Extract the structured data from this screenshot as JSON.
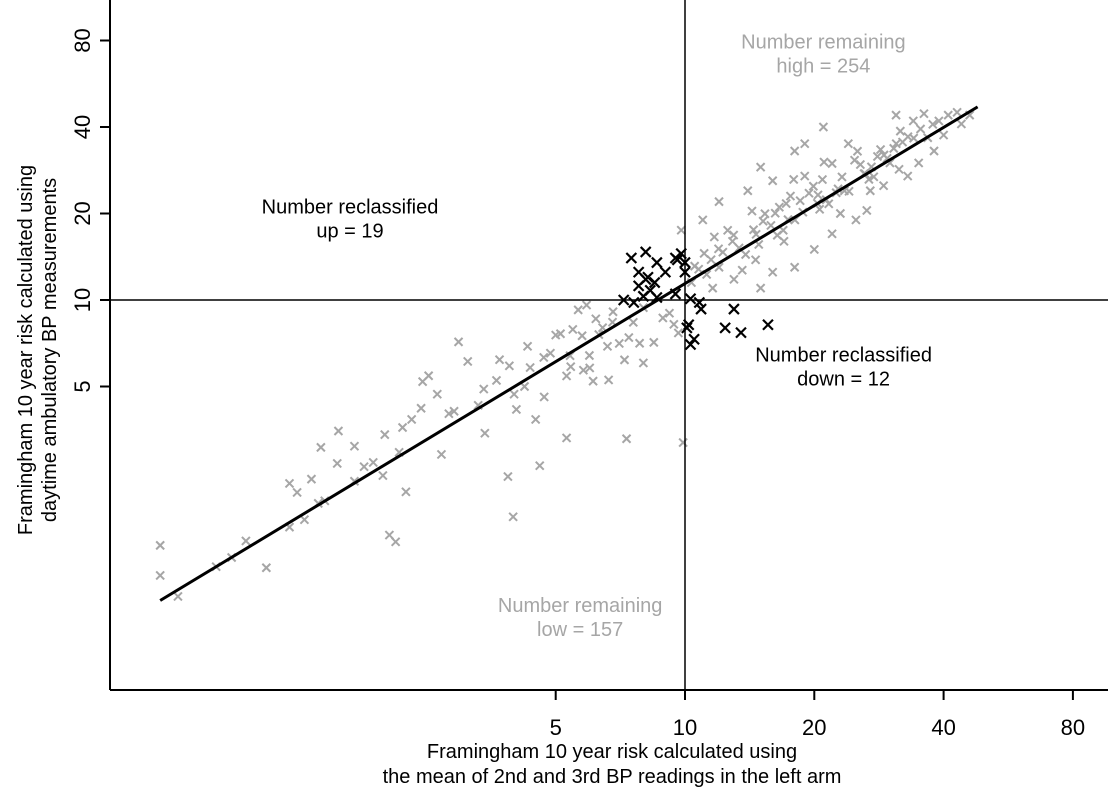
{
  "chart_data": {
    "type": "scatter",
    "scale": "log",
    "xlabel": [
      "Framingham 10 year risk calculated using",
      "the mean of 2nd and 3rd BP readings in the left arm"
    ],
    "ylabel": [
      "Framingham 10 year risk calculated using",
      "daytime ambulatory BP measurements"
    ],
    "x_ticks": [
      5,
      10,
      20,
      40,
      80
    ],
    "y_ticks": [
      5,
      10,
      20,
      40,
      80
    ],
    "threshold": 10,
    "trend_line": [
      [
        0.6,
        0.9
      ],
      [
        48,
        47
      ]
    ],
    "annotations": [
      {
        "lines": [
          "Number remaining",
          "high = 254"
        ],
        "color": "#a6a6a6",
        "x": 21,
        "y": 75
      },
      {
        "lines": [
          "Number reclassified",
          "up = 19"
        ],
        "color": "#000000",
        "x": 1.66,
        "y": 20
      },
      {
        "lines": [
          "Number reclassified",
          "down = 12"
        ],
        "color": "#000000",
        "x": 23.4,
        "y": 6.1
      },
      {
        "lines": [
          "Number remaining",
          "low = 157"
        ],
        "color": "#a6a6a6",
        "x": 5.7,
        "y": 0.82
      }
    ],
    "colors": {
      "remaining": "#a6a6a6",
      "reclassified": "#000000",
      "line": "#000000"
    },
    "reclassified_points": [
      [
        7.5,
        14
      ],
      [
        8.1,
        14.7
      ],
      [
        8.6,
        13.5
      ],
      [
        9.0,
        12.5
      ],
      [
        9.5,
        14.0
      ],
      [
        9.8,
        14.5
      ],
      [
        10.0,
        13.5
      ],
      [
        10.0,
        12.5
      ],
      [
        7.8,
        12.5
      ],
      [
        8.2,
        12.0
      ],
      [
        8.5,
        11.5
      ],
      [
        7.8,
        11.2
      ],
      [
        8.3,
        10.8
      ],
      [
        8.0,
        10.3
      ],
      [
        8.6,
        10.2
      ],
      [
        7.2,
        10.0
      ],
      [
        7.6,
        9.8
      ],
      [
        9.5,
        10.5
      ],
      [
        8.1,
        11.8
      ],
      [
        10.3,
        10.1
      ],
      [
        10.8,
        9.8
      ],
      [
        10.9,
        9.3
      ],
      [
        10.2,
        8.2
      ],
      [
        10.1,
        8.0
      ],
      [
        10.5,
        7.3
      ],
      [
        10.3,
        7.0
      ],
      [
        12.4,
        8.0
      ],
      [
        13.0,
        9.3
      ],
      [
        13.5,
        7.7
      ],
      [
        15.6,
        8.2
      ],
      [
        9.6,
        13.8
      ]
    ],
    "remaining_points": [
      [
        0.6,
        1.4
      ],
      [
        0.6,
        1.1
      ],
      [
        0.66,
        0.93
      ],
      [
        0.81,
        1.18
      ],
      [
        0.88,
        1.27
      ],
      [
        1.06,
        1.17
      ],
      [
        1.2,
        1.62
      ],
      [
        1.3,
        1.72
      ],
      [
        1.4,
        1.96
      ],
      [
        1.25,
        2.14
      ],
      [
        1.35,
        2.38
      ],
      [
        1.42,
        3.07
      ],
      [
        1.56,
        3.5
      ],
      [
        1.7,
        2.34
      ],
      [
        1.79,
        2.63
      ],
      [
        1.88,
        2.72
      ],
      [
        1.98,
        2.45
      ],
      [
        2.16,
        2.95
      ],
      [
        2.05,
        1.52
      ],
      [
        2.12,
        1.44
      ],
      [
        2.24,
        2.15
      ],
      [
        2.31,
        3.84
      ],
      [
        2.43,
        4.2
      ],
      [
        2.53,
        5.45
      ],
      [
        2.71,
        2.9
      ],
      [
        2.82,
        4.02
      ],
      [
        2.97,
        7.15
      ],
      [
        3.12,
        6.11
      ],
      [
        3.3,
        4.3
      ],
      [
        3.42,
        3.44
      ],
      [
        3.64,
        5.25
      ],
      [
        3.87,
        2.43
      ],
      [
        3.98,
        1.76
      ],
      [
        4.05,
        4.16
      ],
      [
        4.23,
        5.0
      ],
      [
        4.36,
        5.82
      ],
      [
        4.49,
        3.84
      ],
      [
        4.59,
        2.65
      ],
      [
        4.69,
        6.31
      ],
      [
        4.86,
        6.53
      ],
      [
        5.0,
        7.55
      ],
      [
        5.13,
        7.63
      ],
      [
        5.3,
        5.44
      ],
      [
        5.3,
        3.31
      ],
      [
        5.42,
        5.86
      ],
      [
        5.48,
        7.9
      ],
      [
        5.64,
        9.24
      ],
      [
        5.76,
        7.51
      ],
      [
        5.99,
        6.41
      ],
      [
        6.11,
        5.22
      ],
      [
        6.3,
        7.58
      ],
      [
        6.43,
        8.01
      ],
      [
        6.64,
        5.27
      ],
      [
        6.78,
        8.37
      ],
      [
        7.03,
        7.06
      ],
      [
        7.23,
        6.19
      ],
      [
        7.31,
        3.29
      ],
      [
        7.58,
        8.36
      ],
      [
        7.84,
        7.07
      ],
      [
        8.0,
        6.04
      ],
      [
        8.46,
        7.12
      ],
      [
        8.88,
        8.66
      ],
      [
        9.42,
        8.23
      ],
      [
        9.65,
        7.68
      ],
      [
        9.9,
        3.19
      ],
      [
        10.35,
        11.5
      ],
      [
        10.53,
        13.12
      ],
      [
        10.76,
        12.8
      ],
      [
        11.08,
        14.53
      ],
      [
        11.23,
        12.27
      ],
      [
        11.5,
        13.81
      ],
      [
        11.7,
        16.58
      ],
      [
        11.97,
        15.07
      ],
      [
        12.25,
        14.67
      ],
      [
        12.57,
        17.48
      ],
      [
        12.98,
        16.83
      ],
      [
        13.36,
        15.17
      ],
      [
        13.59,
        12.7
      ],
      [
        13.84,
        14.4
      ],
      [
        14.32,
        20.4
      ],
      [
        14.44,
        17.56
      ],
      [
        14.64,
        16.93
      ],
      [
        14.85,
        15.61
      ],
      [
        15.35,
        19.96
      ],
      [
        15.85,
        18.17
      ],
      [
        16.22,
        20.05
      ],
      [
        16.58,
        21.04
      ],
      [
        16.93,
        17.49
      ],
      [
        17.2,
        21.66
      ],
      [
        17.37,
        19.04
      ],
      [
        17.91,
        26.27
      ],
      [
        18.02,
        18.99
      ],
      [
        18.54,
        22.16
      ],
      [
        18.81,
        20.21
      ],
      [
        19.0,
        26.99
      ],
      [
        19.44,
        23.54
      ],
      [
        19.9,
        24.88
      ],
      [
        20.33,
        21.7
      ],
      [
        20.58,
        20.68
      ],
      [
        20.89,
        26.25
      ],
      [
        21.07,
        30.2
      ],
      [
        21.32,
        22.33
      ],
      [
        21.61,
        21.62
      ],
      [
        22.0,
        29.86
      ],
      [
        22.49,
        23.62
      ],
      [
        22.72,
        24.36
      ],
      [
        23.5,
        24.0
      ],
      [
        24.09,
        23.89
      ],
      [
        24.82,
        30.66
      ],
      [
        25.21,
        32.94
      ],
      [
        26.12,
        27.51
      ],
      [
        26.25,
        27.52
      ],
      [
        26.8,
        26.29
      ],
      [
        27.17,
        29.06
      ],
      [
        27.51,
        26.84
      ],
      [
        28.06,
        31.59
      ],
      [
        28.53,
        33.39
      ],
      [
        29.06,
        31.96
      ],
      [
        29.55,
        31.11
      ],
      [
        30.62,
        33.7
      ],
      [
        31.03,
        35.0
      ],
      [
        31.72,
        38.7
      ],
      [
        32.1,
        35.44
      ],
      [
        33.04,
        37.01
      ],
      [
        34.07,
        36.59
      ],
      [
        35.35,
        39.36
      ],
      [
        36.74,
        36.7
      ],
      [
        37.75,
        40.88
      ],
      [
        39.0,
        42.0
      ],
      [
        41.0,
        44.0
      ],
      [
        43.0,
        45.0
      ],
      [
        34.0,
        42.0
      ],
      [
        30.0,
        30.0
      ],
      [
        27.0,
        24.0
      ],
      [
        25.0,
        19.0
      ],
      [
        22.0,
        17.0
      ],
      [
        20.0,
        15.0
      ],
      [
        18.0,
        13.0
      ],
      [
        16.0,
        12.5
      ],
      [
        15.0,
        11.0
      ],
      [
        24.0,
        35.0
      ],
      [
        18.0,
        33.0
      ],
      [
        15.0,
        29.0
      ],
      [
        16.0,
        26.0
      ],
      [
        14.0,
        24.0
      ],
      [
        12.0,
        22.0
      ],
      [
        11.0,
        19.0
      ],
      [
        9.8,
        17.5
      ],
      [
        8.0,
        9.4
      ],
      [
        6.8,
        9.1
      ],
      [
        6.2,
        8.6
      ],
      [
        5.9,
        9.6
      ],
      [
        4.3,
        6.9
      ],
      [
        3.9,
        5.9
      ],
      [
        3.7,
        6.2
      ],
      [
        5.4,
        6.4
      ],
      [
        6.0,
        5.8
      ],
      [
        2.65,
        4.7
      ],
      [
        2.2,
        3.6
      ],
      [
        2.9,
        4.1
      ],
      [
        3.4,
        4.9
      ],
      [
        2.0,
        3.4
      ],
      [
        1.55,
        2.7
      ],
      [
        1.45,
        2.0
      ],
      [
        1.2,
        2.3
      ],
      [
        0.95,
        1.45
      ],
      [
        1.7,
        3.1
      ],
      [
        2.45,
        5.2
      ],
      [
        4.0,
        4.7
      ],
      [
        4.7,
        4.6
      ],
      [
        5.8,
        5.7
      ],
      [
        6.6,
        6.9
      ],
      [
        7.4,
        7.4
      ],
      [
        9.2,
        9.0
      ],
      [
        31.0,
        44.0
      ],
      [
        36.0,
        44.5
      ],
      [
        21.0,
        40.0
      ],
      [
        19.0,
        35.0
      ],
      [
        23.0,
        20.0
      ],
      [
        17.0,
        16.0
      ],
      [
        13.0,
        11.8
      ],
      [
        12.0,
        13.0
      ],
      [
        26.5,
        20.5
      ],
      [
        29.0,
        25.0
      ],
      [
        35.0,
        30.0
      ],
      [
        40.0,
        37.5
      ],
      [
        44.0,
        41.0
      ],
      [
        46.0,
        44.0
      ],
      [
        33.0,
        27.0
      ],
      [
        31.5,
        28.5
      ],
      [
        38.0,
        33.0
      ],
      [
        23.2,
        26.8
      ],
      [
        25.6,
        29.6
      ],
      [
        20.4,
        23.2
      ],
      [
        16.4,
        16.8
      ],
      [
        14.6,
        13.8
      ],
      [
        11.6,
        11.0
      ],
      [
        12.9,
        16.0
      ],
      [
        15.2,
        18.8
      ],
      [
        17.6,
        23.0
      ]
    ]
  }
}
